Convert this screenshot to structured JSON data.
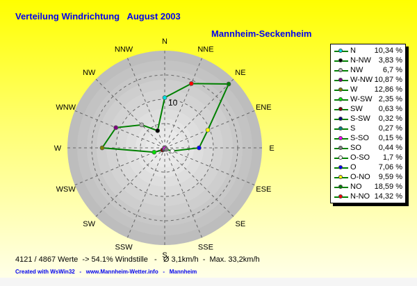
{
  "title": "Verteilung Windrichtung   August 2003",
  "subtitle": "Mannheim-Seckenheim",
  "stats": "4121 / 4867 Werte  -> 54.1% Windstille   -   Ø 3,1km/h  -  Max. 33,2km/h",
  "credit": "Created with WsWin32   -   www.Mannheim-Wetter.info   -   Mannheim",
  "chart_data": {
    "type": "radar",
    "directions": [
      "N",
      "NNE",
      "NE",
      "ENE",
      "E",
      "ESE",
      "SE",
      "SSE",
      "S",
      "SSW",
      "SW",
      "WSW",
      "W",
      "WNW",
      "NW",
      "NNW"
    ],
    "radial_tick_label": "10",
    "rmax": 20,
    "line_color": "#008000",
    "series": [
      {
        "name": "N",
        "value_label": "10,34 %",
        "value": 10.34,
        "angle": 0,
        "color": "#00e0e0"
      },
      {
        "name": "N-NW",
        "value_label": "3,83 %",
        "value": 3.83,
        "angle": -22.5,
        "color": "#000000"
      },
      {
        "name": "NW",
        "value_label": "6,7 %",
        "value": 6.7,
        "angle": -45,
        "color": "#b0b0b0"
      },
      {
        "name": "W-NW",
        "value_label": "10,87 %",
        "value": 10.87,
        "angle": -67.5,
        "color": "#800080"
      },
      {
        "name": "W",
        "value_label": "12,86 %",
        "value": 12.86,
        "angle": -90,
        "color": "#808000"
      },
      {
        "name": "W-SW",
        "value_label": "2,35 %",
        "value": 2.35,
        "angle": -112.5,
        "color": "#00e000"
      },
      {
        "name": "SW",
        "value_label": "0,63 %",
        "value": 0.63,
        "angle": -135,
        "color": "#800000"
      },
      {
        "name": "S-SW",
        "value_label": "0,32 %",
        "value": 0.32,
        "angle": -157.5,
        "color": "#000080"
      },
      {
        "name": "S",
        "value_label": "0,27 %",
        "value": 0.27,
        "angle": 180,
        "color": "#008080"
      },
      {
        "name": "S-SO",
        "value_label": "0,15 %",
        "value": 0.15,
        "angle": 157.5,
        "color": "#ff00ff"
      },
      {
        "name": "SO",
        "value_label": "0,44 %",
        "value": 0.44,
        "angle": 135,
        "color": "#808080"
      },
      {
        "name": "O-SO",
        "value_label": "1,7 %",
        "value": 1.7,
        "angle": 112.5,
        "color": "#ffffff"
      },
      {
        "name": "O",
        "value_label": "7,06 %",
        "value": 7.06,
        "angle": 90,
        "color": "#0000ff"
      },
      {
        "name": "O-NO",
        "value_label": "9,59 %",
        "value": 9.59,
        "angle": 67.5,
        "color": "#ffff00"
      },
      {
        "name": "NO",
        "value_label": "18,59 %",
        "value": 18.59,
        "angle": 45,
        "color": "#008000"
      },
      {
        "name": "N-NO",
        "value_label": "14,32 %",
        "value": 14.32,
        "angle": 22.5,
        "color": "#ff0000"
      }
    ]
  }
}
